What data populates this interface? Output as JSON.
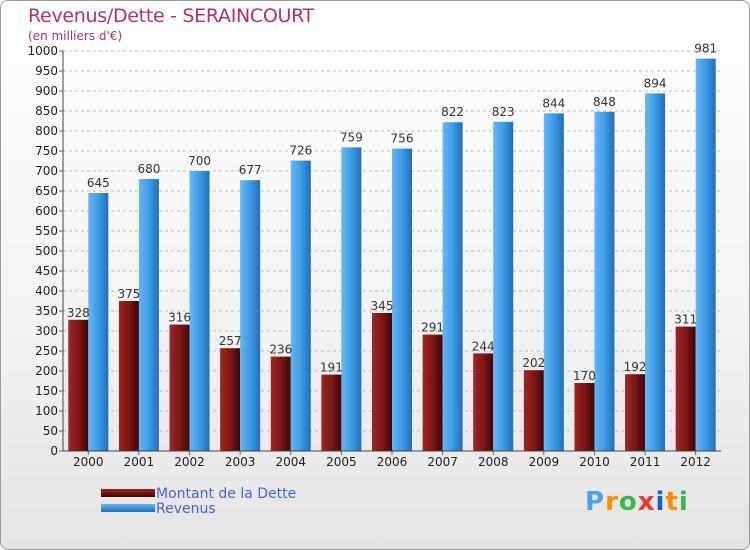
{
  "title": "Revenus/Dette - SERAINCOURT",
  "subtitle": "(en milliers d'€)",
  "colors": {
    "title": "#b5306a",
    "dette": "#7a1515",
    "revenus": "#3d9be6",
    "legend_text": "#4a63d6",
    "grid": "#bbbbbb"
  },
  "chart_data": {
    "type": "bar",
    "categories": [
      "2000",
      "2001",
      "2002",
      "2003",
      "2004",
      "2005",
      "2006",
      "2007",
      "2008",
      "2009",
      "2010",
      "2011",
      "2012"
    ],
    "series": [
      {
        "name": "Montant de la Dette",
        "values": [
          328,
          375,
          316,
          257,
          236,
          191,
          345,
          291,
          244,
          202,
          170,
          192,
          311
        ]
      },
      {
        "name": "Revenus",
        "values": [
          645,
          680,
          700,
          677,
          726,
          759,
          756,
          822,
          823,
          844,
          848,
          894,
          981
        ]
      }
    ],
    "ylim": [
      0,
      1000
    ],
    "yticks": [
      "0",
      "50",
      "100",
      "150",
      "200",
      "250",
      "300",
      "350",
      "400",
      "450",
      "500",
      "550",
      "600",
      "650",
      "700",
      "750",
      "800",
      "850",
      "900",
      "950",
      "1000"
    ],
    "grid": true,
    "legend_position": "bottom-left"
  },
  "legend": {
    "dette_label": "Montant de la Dette",
    "revenus_label": "Revenus"
  },
  "logo": {
    "text": "Proxiti",
    "letters": [
      "P",
      "r",
      "o",
      "x",
      "i",
      "t",
      "i"
    ],
    "letter_colors": [
      "#4aa3df",
      "#ff8a00",
      "#3cb54a",
      "#e53935",
      "#1565c0",
      "#ff8a00",
      "#3cb54a"
    ]
  }
}
